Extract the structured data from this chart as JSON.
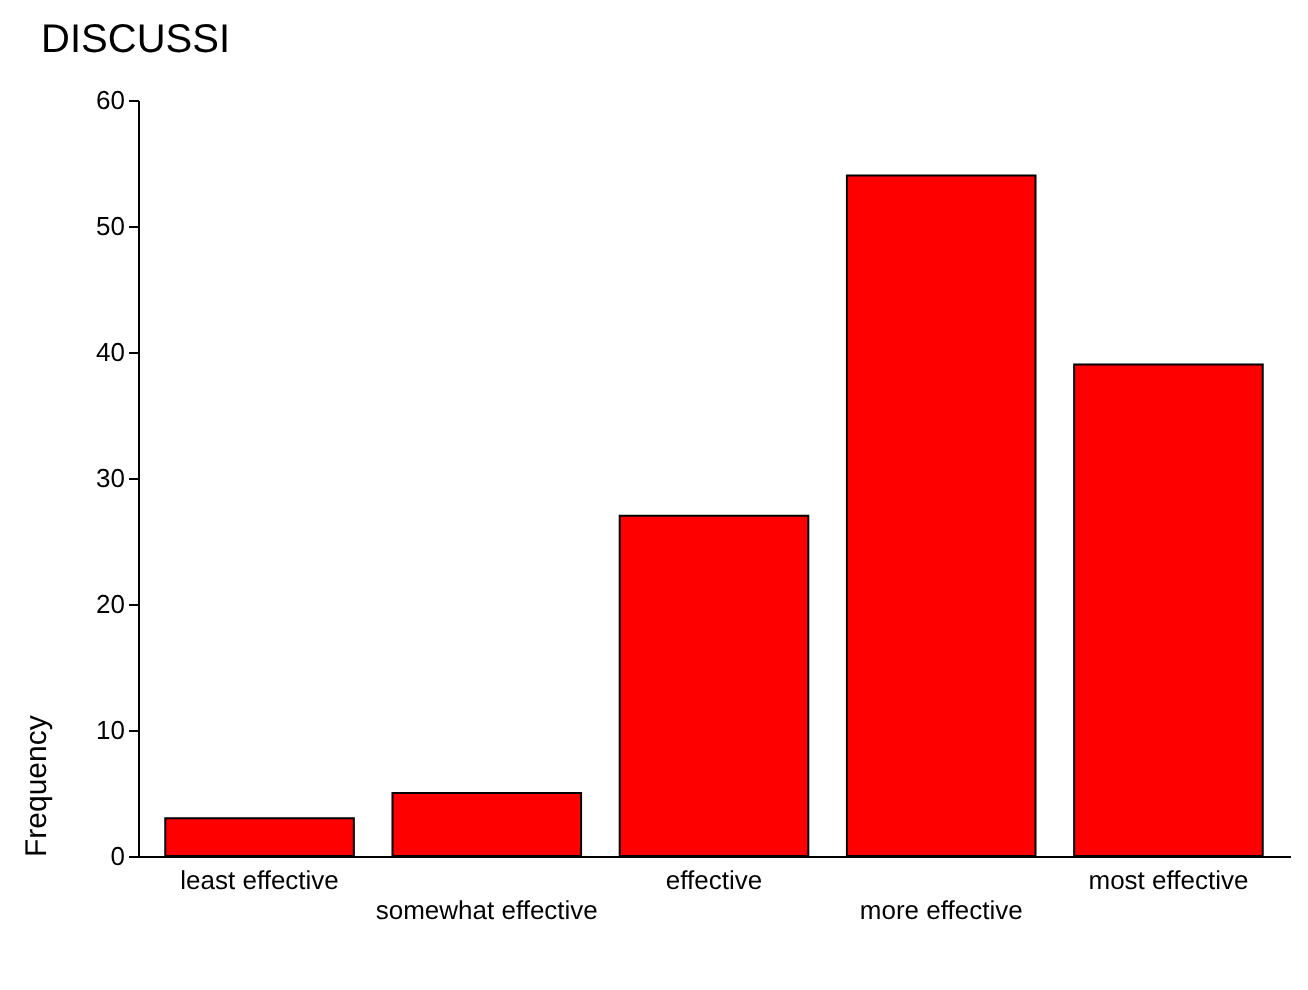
{
  "chart_data": {
    "type": "bar",
    "title": "DISCUSSI",
    "ylabel": "Frequency",
    "categories": [
      "least effective",
      "somewhat effective",
      "effective",
      "more effective",
      "most effective"
    ],
    "values": [
      3,
      5,
      27,
      54,
      39
    ],
    "color": "#ff0000",
    "ylim": [
      0,
      60
    ],
    "yticks": [
      0,
      10,
      20,
      30,
      40,
      50,
      60
    ],
    "grid": false
  }
}
